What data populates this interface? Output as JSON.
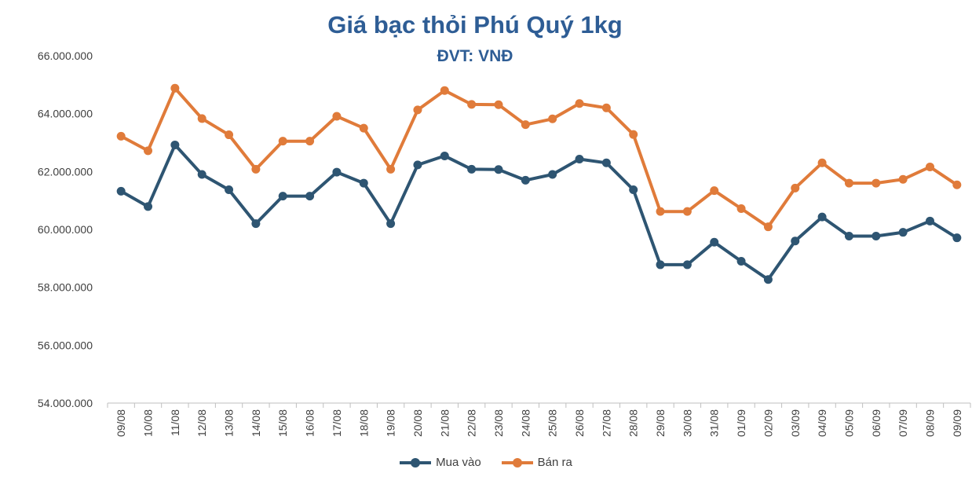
{
  "chart_data": {
    "type": "line",
    "title": "Giá bạc thỏi Phú Quý 1kg",
    "subtitle": "ĐVT: VNĐ",
    "categories": [
      "09/08",
      "10/08",
      "11/08",
      "12/08",
      "13/08",
      "14/08",
      "15/08",
      "16/08",
      "17/08",
      "18/08",
      "19/08",
      "20/08",
      "21/08",
      "22/08",
      "23/08",
      "24/08",
      "25/08",
      "26/08",
      "27/08",
      "28/08",
      "29/08",
      "30/08",
      "31/08",
      "01/09",
      "02/09",
      "03/09",
      "04/09",
      "05/09",
      "06/09",
      "07/09",
      "08/09",
      "09/09"
    ],
    "series": [
      {
        "name": "Mua vào",
        "color": "#2e5572",
        "values": [
          61320000,
          60790000,
          62920000,
          61900000,
          61370000,
          60200000,
          61150000,
          61150000,
          61980000,
          61600000,
          60200000,
          62230000,
          62540000,
          62080000,
          62070000,
          61700000,
          61900000,
          62430000,
          62300000,
          61370000,
          58780000,
          58780000,
          59560000,
          58900000,
          58270000,
          59600000,
          60430000,
          59770000,
          59770000,
          59900000,
          60290000,
          59710000
        ]
      },
      {
        "name": "Bán ra",
        "color": "#e07b3a",
        "values": [
          63220000,
          62720000,
          64880000,
          63830000,
          63270000,
          62080000,
          63050000,
          63050000,
          63910000,
          63500000,
          62080000,
          64130000,
          64800000,
          64320000,
          64310000,
          63620000,
          63820000,
          64350000,
          64200000,
          63280000,
          60620000,
          60620000,
          61340000,
          60720000,
          60090000,
          61430000,
          62300000,
          61600000,
          61600000,
          61730000,
          62160000,
          61540000
        ]
      }
    ],
    "y_ticks": [
      "54.000.000",
      "56.000.000",
      "58.000.000",
      "60.000.000",
      "62.000.000",
      "64.000.000",
      "66.000.000"
    ],
    "ylim": [
      54000000,
      66000000
    ],
    "grid": false,
    "legend_position": "bottom"
  },
  "legend": {
    "item1": "Mua vào",
    "item2": "Bán ra"
  }
}
